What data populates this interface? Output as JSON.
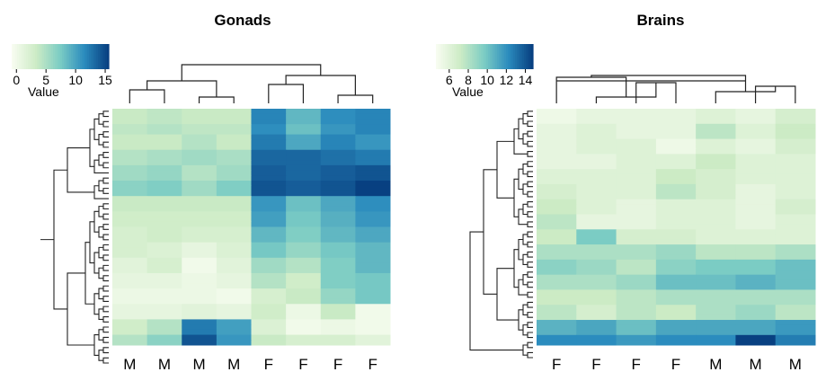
{
  "chart_data": [
    {
      "type": "heatmap",
      "title": "Gonads",
      "legend_title": "Value",
      "legend_ticks": [
        0,
        5,
        10,
        15
      ],
      "value_range": [
        0,
        15.5
      ],
      "columns": [
        "M",
        "M",
        "M",
        "M",
        "F",
        "F",
        "F",
        "F"
      ],
      "row_blocks": [
        {
          "rows": 3,
          "values": [
            4,
            4.5,
            4,
            4,
            12,
            9,
            11.5,
            12
          ]
        },
        {
          "rows": 2,
          "values": [
            4.5,
            5,
            4.5,
            4.5,
            11.5,
            8.5,
            11,
            12
          ]
        },
        {
          "rows": 3,
          "values": [
            4,
            4,
            5,
            4,
            12.5,
            10,
            12,
            11
          ]
        },
        {
          "rows": 3,
          "values": [
            5,
            5.5,
            6,
            5.5,
            13.5,
            13.5,
            13,
            12.5
          ]
        },
        {
          "rows": 3,
          "values": [
            6,
            6.5,
            5,
            6,
            14,
            13.5,
            14,
            14.5
          ]
        },
        {
          "rows": 3,
          "values": [
            7,
            7.5,
            6,
            7.5,
            14.5,
            14,
            14.5,
            15.5
          ]
        },
        {
          "rows": 3,
          "values": [
            4,
            4,
            4,
            4,
            11,
            8.5,
            10,
            11.5
          ]
        },
        {
          "rows": 3,
          "values": [
            3.5,
            3.5,
            3.5,
            3.5,
            10.5,
            8,
            9.5,
            11
          ]
        },
        {
          "rows": 3,
          "values": [
            3,
            3.5,
            3,
            3,
            9,
            7.5,
            9,
            10
          ]
        },
        {
          "rows": 3,
          "values": [
            3,
            2.5,
            1.5,
            2.5,
            8,
            6.5,
            8,
            9
          ]
        },
        {
          "rows": 3,
          "values": [
            2,
            3,
            0.5,
            2,
            6,
            5,
            7.5,
            9
          ]
        },
        {
          "rows": 3,
          "values": [
            1.5,
            1.5,
            1,
            1.5,
            5,
            3.5,
            7.5,
            8
          ]
        },
        {
          "rows": 3,
          "values": [
            1,
            1,
            1,
            0.5,
            3,
            4,
            6.5,
            8
          ]
        },
        {
          "rows": 3,
          "values": [
            1.5,
            1.5,
            2,
            1.5,
            3.5,
            1,
            4,
            0.5
          ]
        },
        {
          "rows": 3,
          "values": [
            3.5,
            5,
            12.5,
            10.5,
            2.5,
            0.5,
            1,
            0.5
          ]
        },
        {
          "rows": 2,
          "values": [
            5,
            7,
            14.5,
            11,
            4,
            3,
            3,
            2
          ]
        }
      ]
    },
    {
      "type": "heatmap",
      "title": "Brains",
      "legend_title": "Value",
      "legend_ticks": [
        6,
        8,
        10,
        12,
        14
      ],
      "value_range": [
        4.5,
        14.5
      ],
      "columns": [
        "F",
        "F",
        "F",
        "F",
        "M",
        "M",
        "M"
      ],
      "row_blocks": [
        {
          "rows": 3,
          "values": [
            5,
            5.5,
            5.5,
            5.5,
            6,
            5.5,
            6.5
          ]
        },
        {
          "rows": 3,
          "values": [
            5.5,
            6,
            5.5,
            5.5,
            7.5,
            6,
            7
          ]
        },
        {
          "rows": 3,
          "values": [
            5.5,
            6,
            6,
            5,
            6,
            5.5,
            6.5
          ]
        },
        {
          "rows": 3,
          "values": [
            5.5,
            5.5,
            6,
            6,
            7,
            6,
            6
          ]
        },
        {
          "rows": 3,
          "values": [
            6,
            6,
            6,
            7,
            6.5,
            6,
            6
          ]
        },
        {
          "rows": 3,
          "values": [
            6.5,
            6,
            6,
            7.5,
            6.5,
            5.5,
            6
          ]
        },
        {
          "rows": 3,
          "values": [
            7,
            6,
            5.5,
            6,
            6,
            5.5,
            6.5
          ]
        },
        {
          "rows": 3,
          "values": [
            7.5,
            5.5,
            5.5,
            6,
            6,
            5.5,
            6
          ]
        },
        {
          "rows": 3,
          "values": [
            7,
            9.5,
            6.5,
            6.5,
            6,
            6,
            6
          ]
        },
        {
          "rows": 3,
          "values": [
            8,
            8,
            8,
            8.5,
            7.5,
            7.5,
            8
          ]
        },
        {
          "rows": 3,
          "values": [
            9,
            8.5,
            7.5,
            9,
            9.5,
            9.5,
            10
          ]
        },
        {
          "rows": 3,
          "values": [
            8,
            8,
            8.5,
            10,
            10,
            10.5,
            10
          ]
        },
        {
          "rows": 3,
          "values": [
            7,
            7,
            7.5,
            8,
            8,
            8,
            8
          ]
        },
        {
          "rows": 3,
          "values": [
            7.5,
            6.5,
            7.5,
            7,
            8,
            8.5,
            7.5
          ]
        },
        {
          "rows": 3,
          "values": [
            10.5,
            11,
            10,
            11,
            11,
            11,
            11.5
          ]
        },
        {
          "rows": 2,
          "values": [
            12,
            12,
            11.5,
            12,
            12,
            14.5,
            12.5
          ]
        }
      ]
    }
  ]
}
